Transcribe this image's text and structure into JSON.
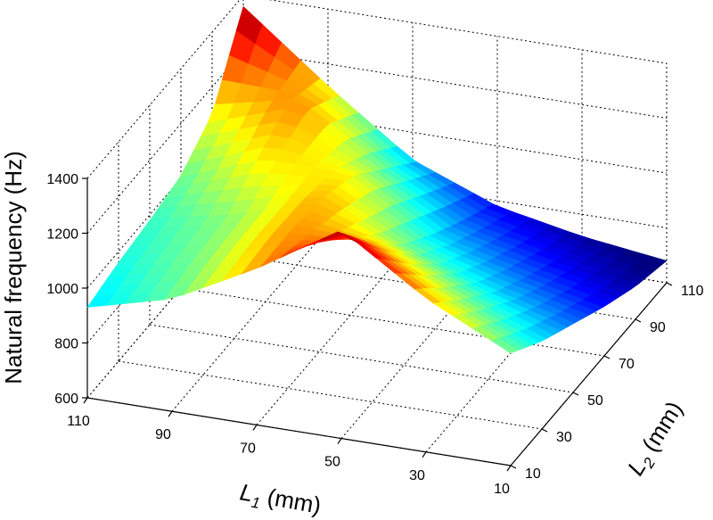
{
  "chart_data": {
    "type": "surface3d",
    "title": "",
    "xlabel": "L1 (mm)",
    "xlabel_main": "L",
    "xlabel_sub": "1",
    "xlabel_unit": " (mm)",
    "ylabel": "L2 (mm)",
    "ylabel_main": "L",
    "ylabel_sub": "2",
    "ylabel_unit": " (mm)",
    "zlabel": "Natural frequency (Hz)",
    "x_ticks": [
      "110",
      "90",
      "70",
      "50",
      "30",
      "10"
    ],
    "y_ticks": [
      "10",
      "30",
      "50",
      "70",
      "90",
      "110"
    ],
    "z_ticks": [
      "600",
      "800",
      "1000",
      "1200",
      "1400"
    ],
    "x_range": [
      10,
      110
    ],
    "y_range": [
      10,
      110
    ],
    "z_range": [
      600,
      1400
    ],
    "grid": true,
    "colormap": "jet",
    "surface": {
      "x_L1": [
        10,
        30,
        50,
        70,
        90,
        110
      ],
      "y_L2": [
        10,
        30,
        50,
        70,
        90,
        110
      ],
      "z_rows_by_L2": [
        [
          1010,
          1160,
          1360,
          1170,
          1010,
          930
        ],
        [
          920,
          1040,
          1180,
          1180,
          1030,
          960
        ],
        [
          850,
          930,
          1030,
          1170,
          1040,
          980
        ],
        [
          780,
          850,
          930,
          1120,
          1130,
          1010
        ],
        [
          720,
          780,
          850,
          1010,
          1200,
          1100
        ],
        [
          680,
          720,
          780,
          900,
          1120,
          1360
        ]
      ],
      "color_min": 700,
      "color_max": 1360
    }
  }
}
